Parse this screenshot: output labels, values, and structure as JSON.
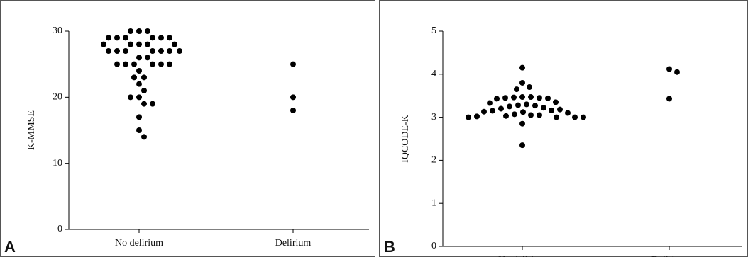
{
  "chart_data": [
    {
      "type": "strip",
      "panel": "A",
      "ylabel": "K-MMSE",
      "categories": [
        "No delirium",
        "Delirium"
      ],
      "color": "#000000",
      "ylim": [
        0,
        30
      ],
      "yticks": [
        0,
        10,
        20,
        30
      ],
      "values": [
        [
          30,
          30,
          30,
          29,
          29,
          29,
          29,
          29,
          29,
          28,
          28,
          28,
          28,
          28,
          27,
          27,
          27,
          27,
          27,
          27,
          27,
          26,
          26,
          25,
          25,
          25,
          25,
          25,
          25,
          24,
          23,
          23,
          22,
          21,
          20,
          20,
          19,
          19,
          17,
          15,
          14
        ],
        [
          25,
          20,
          18
        ]
      ]
    },
    {
      "type": "strip",
      "panel": "B",
      "ylabel": "IQCODE-K",
      "categories": [
        "No delirium",
        "Delirium"
      ],
      "color": "#000000",
      "ylim": [
        0,
        5
      ],
      "yticks": [
        0,
        1,
        2,
        3,
        4,
        5
      ],
      "values": [
        [
          4.15,
          3.8,
          3.7,
          3.65,
          3.47,
          3.47,
          3.46,
          3.45,
          3.45,
          3.44,
          3.43,
          3.35,
          3.33,
          3.3,
          3.28,
          3.27,
          3.25,
          3.22,
          3.2,
          3.18,
          3.16,
          3.15,
          3.13,
          3.12,
          3.1,
          3.07,
          3.05,
          3.05,
          3.03,
          3.02,
          3.0,
          3.0,
          3.0,
          3.0,
          2.85,
          2.35
        ],
        [
          4.12,
          4.05,
          3.43
        ]
      ]
    }
  ]
}
